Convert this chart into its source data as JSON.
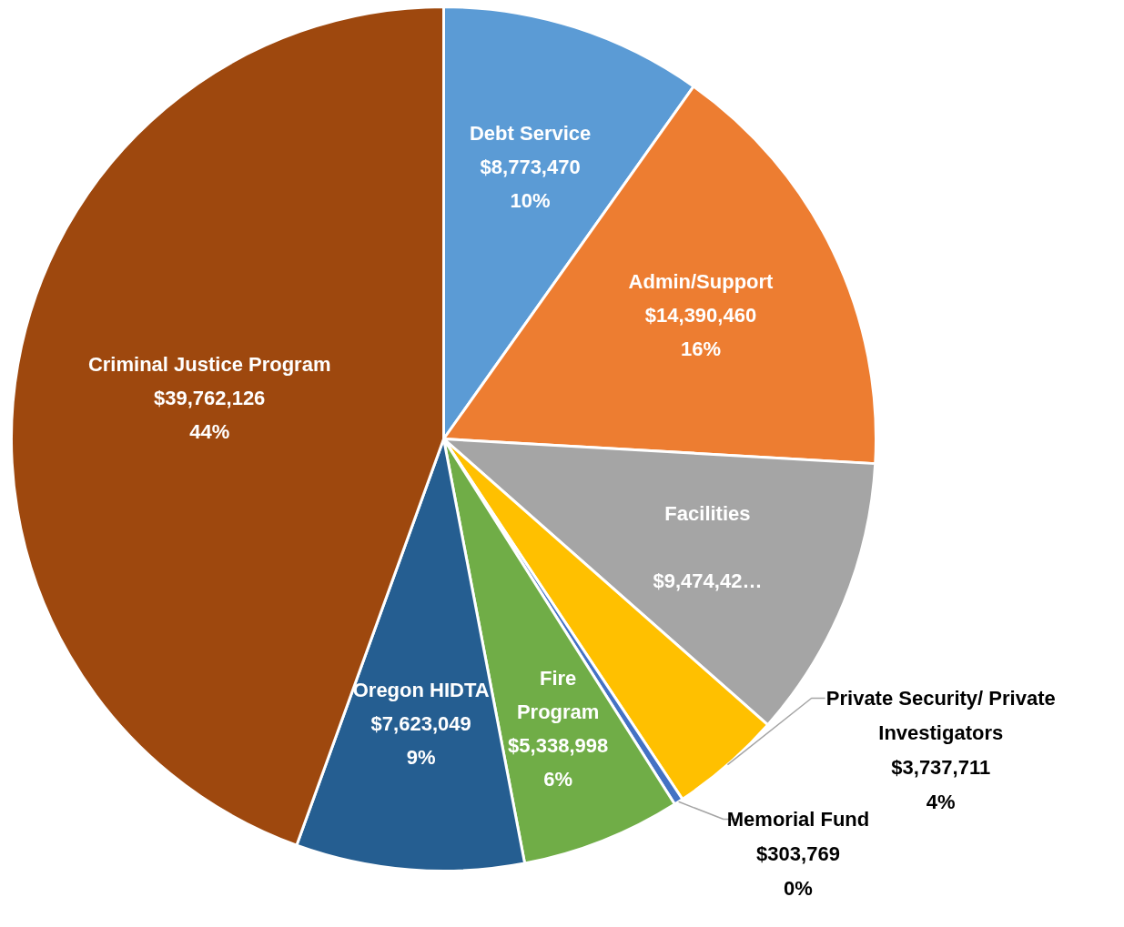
{
  "chart_data": {
    "type": "pie",
    "categories": [
      "Debt Service",
      "Admin/Support",
      "Facilities",
      "Private Security/ Private Investigators",
      "Memorial Fund",
      "Fire Program",
      "Oregon HIDTA",
      "Criminal Justice Program"
    ],
    "values": [
      8773470,
      14390460,
      9474420,
      3737711,
      303769,
      5338998,
      7623049,
      39762126
    ],
    "colors": [
      "#5b9bd5",
      "#ed7d31",
      "#a5a5a5",
      "#ffc000",
      "#4472c4",
      "#70ad47",
      "#255e91",
      "#9e480e"
    ],
    "value_labels": [
      "$8,773,470\n10%",
      "$14,390,460\n16%",
      "\n$9,474,42…",
      "$3,737,711\n4%",
      "$303,769\n0%",
      "$5,338,998\n6%",
      "$7,623,049\n9%",
      "$39,762,126\n44%"
    ]
  }
}
